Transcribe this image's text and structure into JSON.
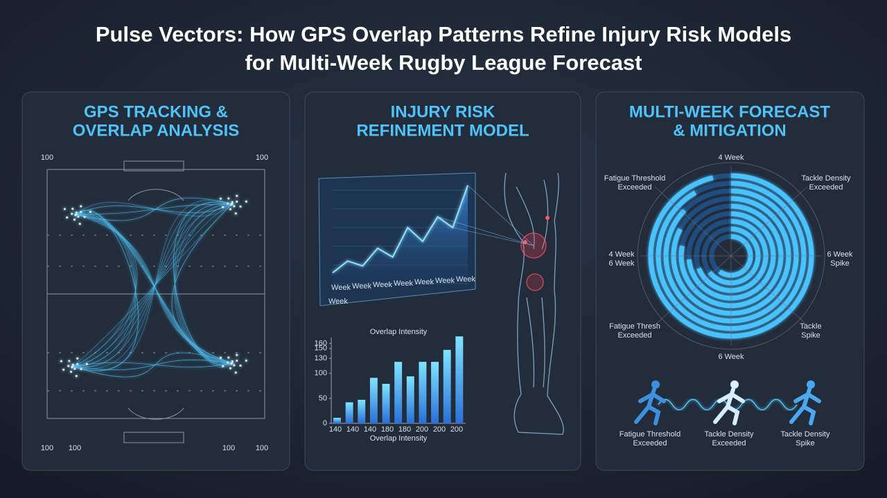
{
  "header": {
    "title_lines": [
      "Pulse Vectors: How GPS Overlap Patterns Refine Injury Risk Models",
      "for Multi-Week Rugby League Forecast"
    ]
  },
  "panels": [
    {
      "title_lines": [
        "GPS TRACKING &",
        "OVERLAP ANALYSIS"
      ],
      "field_labels": [
        "100",
        "100",
        "100",
        "100",
        "100",
        "100"
      ]
    },
    {
      "title_lines": [
        "INJURY RISK",
        "REFINEMENT MODEL"
      ],
      "line_chart": {
        "values": [
          11,
          23,
          18,
          36,
          27,
          57,
          43,
          68,
          57,
          100
        ],
        "ylim": [
          0,
          100
        ],
        "x_labels": [
          "Week",
          "Week",
          "Week",
          "Week",
          "Week",
          "Week",
          "Week"
        ],
        "corner_label": "Week"
      },
      "bar_chart": {
        "title": "Overlap Intensity",
        "x_title": "Overlap Intensity",
        "values": [
          11,
          42,
          47,
          91,
          79,
          123,
          94,
          123,
          123,
          147,
          174
        ],
        "ylim": [
          0,
          180
        ],
        "yticks": [
          0,
          50,
          100,
          130,
          150,
          160
        ],
        "x_labels": [
          "140",
          "140",
          "140",
          "180",
          "180",
          "200",
          "200",
          "200"
        ]
      }
    },
    {
      "title_lines": [
        "MULTI-WEEK FORECAST",
        "& MITIGATION"
      ],
      "radial_labels": [
        {
          "lines": [
            "4 Week"
          ]
        },
        {
          "lines": [
            "Fatigue Threshold",
            "Exceeded"
          ]
        },
        {
          "lines": [
            "Tackle Density",
            "Exceeded"
          ]
        },
        {
          "lines": [
            "4 Week",
            "6 Week"
          ]
        },
        {
          "lines": [
            "6 Week",
            "Spike"
          ]
        },
        {
          "lines": [
            "Fatigue Thresh",
            "Exceeded"
          ]
        },
        {
          "lines": [
            "Tackle",
            "Spike"
          ]
        },
        {
          "lines": [
            "6 Week"
          ]
        }
      ],
      "athletes": [
        {
          "lines": [
            "Fatigue Threshold",
            "Exceeded"
          ]
        },
        {
          "lines": [
            "Tackle Density",
            "Exceeded"
          ]
        },
        {
          "lines": [
            "Tackle Density",
            "Spike"
          ]
        }
      ]
    }
  ]
}
